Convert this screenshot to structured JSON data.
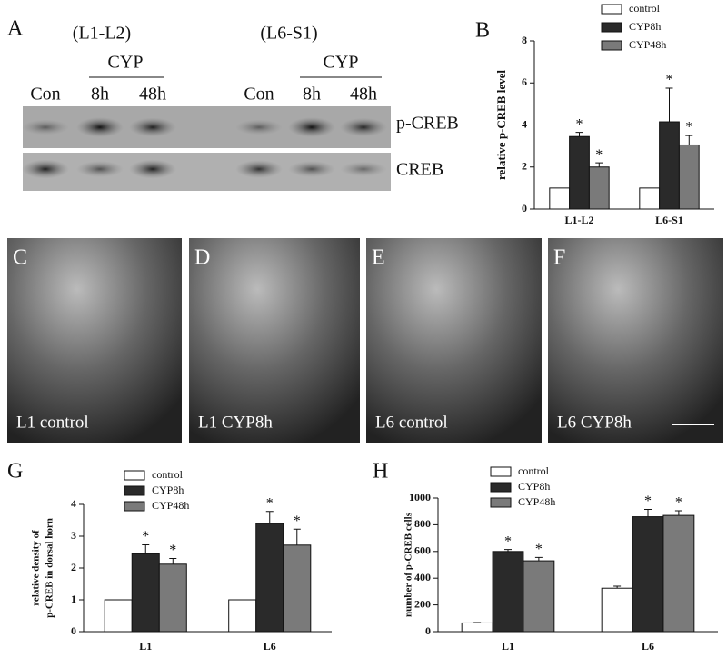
{
  "panel_a": {
    "label": "A",
    "groups": [
      "(L1-L2)",
      "(L6-S1)"
    ],
    "treatment": [
      "CYP",
      "CYP"
    ],
    "lanes": [
      "Con",
      "8h",
      "48h",
      "Con",
      "8h",
      "48h"
    ],
    "blots": [
      "p-CREB",
      "CREB"
    ]
  },
  "micrographs": [
    {
      "label": "C",
      "caption": "L1 control"
    },
    {
      "label": "D",
      "caption": "L1 CYP8h"
    },
    {
      "label": "E",
      "caption": "L6 control"
    },
    {
      "label": "F",
      "caption": "L6 CYP8h"
    }
  ],
  "chart_data": [
    {
      "type": "bar",
      "panel": "B",
      "ylabel": "relative p-CREB level",
      "categories": [
        "L1-L2",
        "L6-S1"
      ],
      "ylim": [
        0,
        8
      ],
      "yticks": [
        0,
        2,
        4,
        6,
        8
      ],
      "series": [
        {
          "name": "control",
          "color": "#ffffff",
          "values": [
            1,
            1
          ]
        },
        {
          "name": "CYP8h",
          "color": "#2a2a2a",
          "values": [
            3.45,
            4.15
          ],
          "errors": [
            0.2,
            1.6
          ],
          "significance": [
            "*",
            "*"
          ]
        },
        {
          "name": "CYP48h",
          "color": "#7a7a7a",
          "values": [
            2.0,
            3.05
          ],
          "errors": [
            0.2,
            0.45
          ],
          "significance": [
            "*",
            "*"
          ]
        }
      ]
    },
    {
      "type": "bar",
      "panel": "G",
      "ylabel": [
        "relative density of",
        "p-CREB in dorsal horn"
      ],
      "categories": [
        "L1",
        "L6"
      ],
      "ylim": [
        0,
        4
      ],
      "yticks": [
        0,
        1,
        2,
        3,
        4
      ],
      "series": [
        {
          "name": "control",
          "color": "#ffffff",
          "values": [
            1,
            1
          ]
        },
        {
          "name": "CYP8h",
          "color": "#2a2a2a",
          "values": [
            2.45,
            3.4
          ],
          "errors": [
            0.28,
            0.38
          ],
          "significance": [
            "*",
            "*"
          ]
        },
        {
          "name": "CYP48h",
          "color": "#7a7a7a",
          "values": [
            2.12,
            2.72
          ],
          "errors": [
            0.18,
            0.5
          ],
          "significance": [
            "*",
            "*"
          ]
        }
      ]
    },
    {
      "type": "bar",
      "panel": "H",
      "ylabel": "number of p-CREB cells",
      "categories": [
        "L1",
        "L6"
      ],
      "ylim": [
        0,
        1000
      ],
      "yticks": [
        0,
        200,
        400,
        600,
        800,
        1000
      ],
      "series": [
        {
          "name": "control",
          "color": "#ffffff",
          "values": [
            65,
            325
          ],
          "errors": [
            3,
            15
          ]
        },
        {
          "name": "CYP8h",
          "color": "#2a2a2a",
          "values": [
            600,
            860
          ],
          "errors": [
            15,
            55
          ],
          "significance": [
            "*",
            "*"
          ]
        },
        {
          "name": "CYP48h",
          "color": "#7a7a7a",
          "values": [
            530,
            870
          ],
          "errors": [
            25,
            35
          ],
          "significance": [
            "*",
            "*"
          ]
        }
      ]
    }
  ]
}
